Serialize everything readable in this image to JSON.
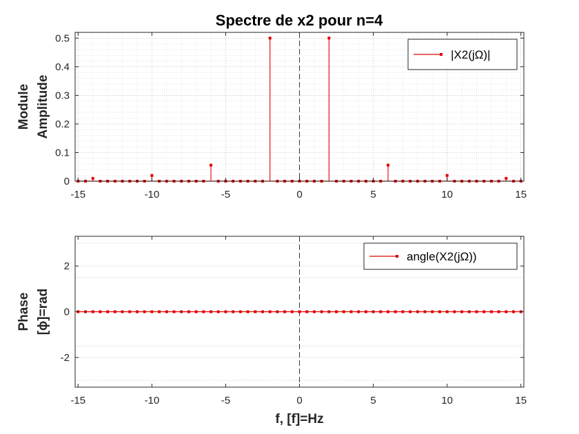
{
  "colors": {
    "series": "#e00000",
    "axis": "#262626",
    "grid_major": "#b0b0b0",
    "grid_minor": "#d8d8d8"
  },
  "chart_data": [
    {
      "type": "stem",
      "title": "Spectre de x2 pour n=4",
      "ylabel_lines": [
        "Module",
        "Amplitude"
      ],
      "xlabel": "",
      "xlim": [
        -15.2,
        15.2
      ],
      "ylim": [
        0,
        0.52
      ],
      "xticks": [
        -15,
        -10,
        -5,
        0,
        5,
        10,
        15
      ],
      "xtick_labels": [
        "-15",
        "-10",
        "-5",
        "0",
        "5",
        "10",
        "15"
      ],
      "yticks": [
        0,
        0.1,
        0.2,
        0.3,
        0.4,
        0.5
      ],
      "ytick_labels": [
        "0",
        "0.1",
        "0.2",
        "0.3",
        "0.4",
        "0.5"
      ],
      "grid": true,
      "minor_grid": true,
      "zero_line_dashed": true,
      "legend": {
        "label": "|X2(jΩ)|",
        "position": "top-right"
      },
      "x": [
        -15,
        -14.5,
        -14,
        -13.5,
        -13,
        -12.5,
        -12,
        -11.5,
        -11,
        -10.5,
        -10,
        -9.5,
        -9,
        -8.5,
        -8,
        -7.5,
        -7,
        -6.5,
        -6,
        -5.5,
        -5,
        -4.5,
        -4,
        -3.5,
        -3,
        -2.5,
        -2,
        -1.5,
        -1,
        -0.5,
        0,
        0.5,
        1,
        1.5,
        2,
        2.5,
        3,
        3.5,
        4,
        4.5,
        5,
        5.5,
        6,
        6.5,
        7,
        7.5,
        8,
        8.5,
        9,
        9.5,
        10,
        10.5,
        11,
        11.5,
        12,
        12.5,
        13,
        13.5,
        14,
        14.5,
        15
      ],
      "y": [
        0,
        0,
        0.01,
        0,
        0,
        0,
        0,
        0,
        0,
        0,
        0.02,
        0,
        0,
        0,
        0,
        0,
        0,
        0,
        0.056,
        0,
        0,
        0,
        0,
        0,
        0,
        0,
        0.5,
        0,
        0,
        0,
        0,
        0,
        0,
        0,
        0.5,
        0,
        0,
        0,
        0,
        0,
        0,
        0,
        0.056,
        0,
        0,
        0,
        0,
        0,
        0,
        0,
        0.02,
        0,
        0,
        0,
        0,
        0,
        0,
        0,
        0.01,
        0,
        0
      ]
    },
    {
      "type": "stem",
      "title": "",
      "ylabel_lines": [
        "Phase",
        "[ϕ]=rad"
      ],
      "xlabel": "f, [f]=Hz",
      "xlim": [
        -15.2,
        15.2
      ],
      "ylim": [
        -3.3,
        3.3
      ],
      "xticks": [
        -15,
        -10,
        -5,
        0,
        5,
        10,
        15
      ],
      "xtick_labels": [
        "-15",
        "-10",
        "-5",
        "0",
        "5",
        "10",
        "15"
      ],
      "yticks": [
        -2,
        0,
        2
      ],
      "ytick_labels": [
        "-2",
        "0",
        "2"
      ],
      "grid": true,
      "minor_grid": false,
      "zero_line_dashed": true,
      "legend": {
        "label": "angle(X2(jΩ))",
        "position": "top-right"
      },
      "x": [
        -15,
        -14.5,
        -14,
        -13.5,
        -13,
        -12.5,
        -12,
        -11.5,
        -11,
        -10.5,
        -10,
        -9.5,
        -9,
        -8.5,
        -8,
        -7.5,
        -7,
        -6.5,
        -6,
        -5.5,
        -5,
        -4.5,
        -4,
        -3.5,
        -3,
        -2.5,
        -2,
        -1.5,
        -1,
        -0.5,
        0,
        0.5,
        1,
        1.5,
        2,
        2.5,
        3,
        3.5,
        4,
        4.5,
        5,
        5.5,
        6,
        6.5,
        7,
        7.5,
        8,
        8.5,
        9,
        9.5,
        10,
        10.5,
        11,
        11.5,
        12,
        12.5,
        13,
        13.5,
        14,
        14.5,
        15
      ],
      "y": [
        0,
        0,
        0,
        0,
        0,
        0,
        0,
        0,
        0,
        0,
        0,
        0,
        0,
        0,
        0,
        0,
        0,
        0,
        0,
        0,
        0,
        0,
        0,
        0,
        0,
        0,
        0,
        0,
        0,
        0,
        0,
        0,
        0,
        0,
        0,
        0,
        0,
        0,
        0,
        0,
        0,
        0,
        0,
        0,
        0,
        0,
        0,
        0,
        0,
        0,
        0,
        0,
        0,
        0,
        0,
        0,
        0,
        0,
        0,
        0,
        0
      ]
    }
  ]
}
